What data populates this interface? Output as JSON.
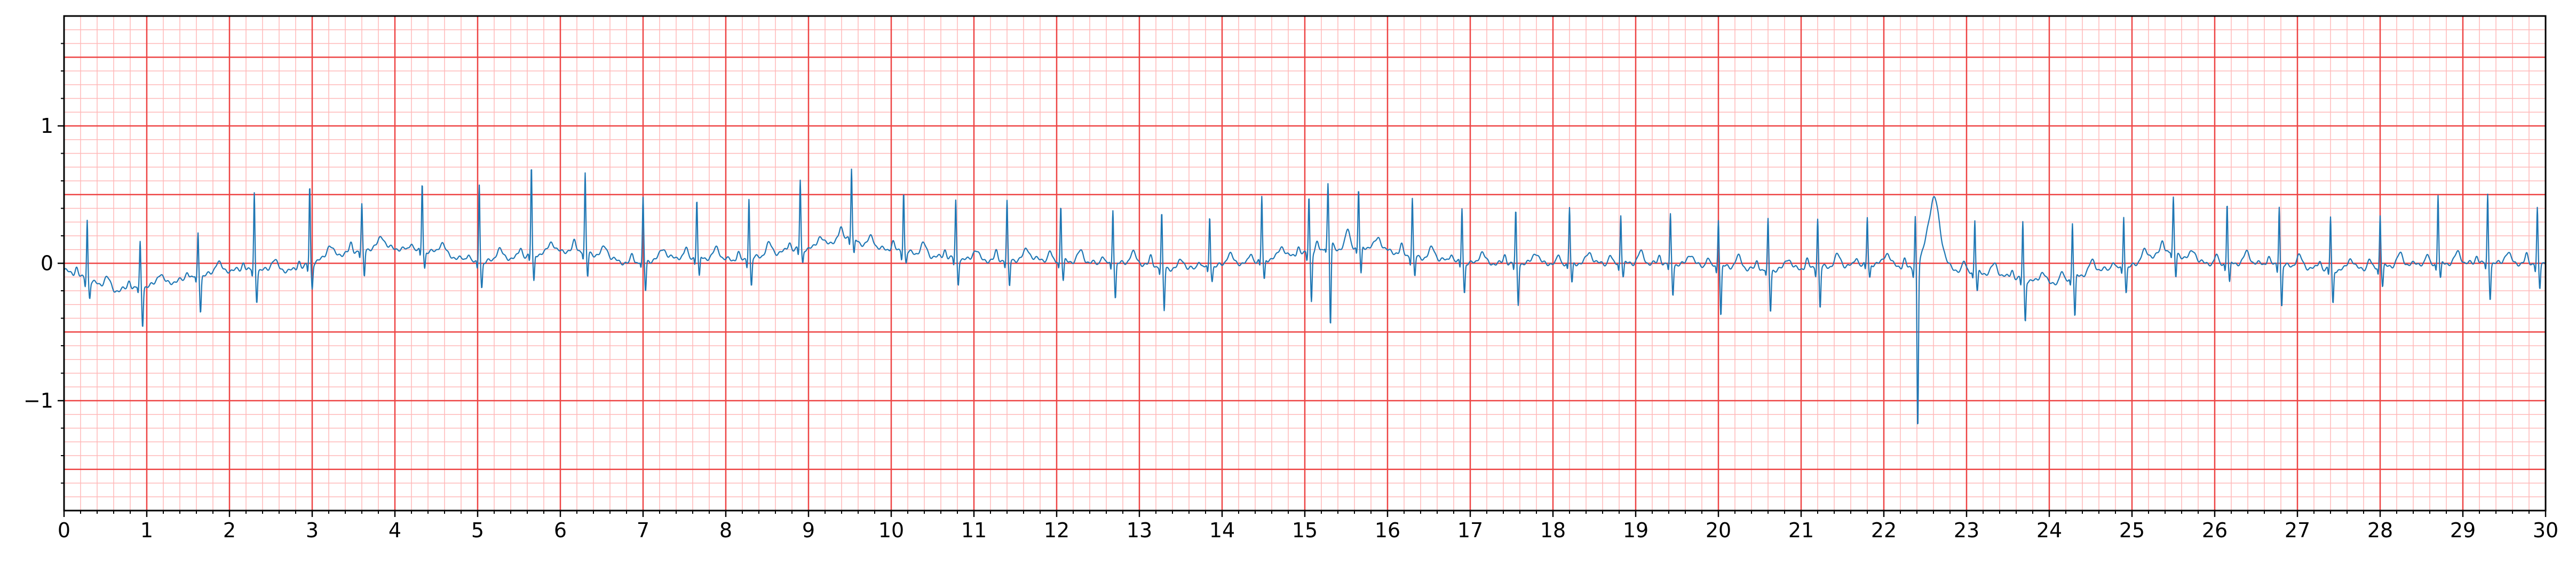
{
  "chart_data": {
    "type": "line",
    "title": "",
    "xlabel": "",
    "ylabel": "",
    "xlim": [
      0,
      30
    ],
    "ylim": [
      -1.8,
      1.8
    ],
    "x_ticks": [
      "0",
      "1",
      "2",
      "3",
      "4",
      "5",
      "6",
      "7",
      "8",
      "9",
      "10",
      "11",
      "12",
      "13",
      "14",
      "15",
      "16",
      "17",
      "18",
      "19",
      "20",
      "21",
      "22",
      "23",
      "24",
      "25",
      "26",
      "27",
      "28",
      "29",
      "30"
    ],
    "y_ticks": [
      {
        "value": -1,
        "label": "−1"
      },
      {
        "value": 0,
        "label": "0"
      },
      {
        "value": 1,
        "label": "1"
      }
    ],
    "grid": {
      "major": true,
      "major_x_step": 1,
      "major_y_step": 0.5,
      "minor": true,
      "minor_x_step": 0.2,
      "minor_y_step": 0.1,
      "major_color": "#ee4444",
      "minor_color": "#ffb8b8"
    },
    "series_color": "#1f77b4",
    "series": [
      {
        "baseline": [
          [
            0,
            -0.05
          ],
          [
            0.6,
            -0.2
          ],
          [
            1.2,
            -0.15
          ],
          [
            2,
            -0.05
          ],
          [
            2.8,
            -0.05
          ],
          [
            3.2,
            0.05
          ],
          [
            3.8,
            0.12
          ],
          [
            4.5,
            0.08
          ],
          [
            5,
            0.0
          ],
          [
            5.5,
            0.05
          ],
          [
            6.2,
            0.1
          ],
          [
            6.8,
            0.0
          ],
          [
            7.5,
            0.05
          ],
          [
            8.2,
            0.02
          ],
          [
            8.8,
            0.1
          ],
          [
            9.4,
            0.12
          ],
          [
            10,
            0.1
          ],
          [
            10.5,
            0.05
          ],
          [
            11,
            0.02
          ],
          [
            11.8,
            0.03
          ],
          [
            12.5,
            0.0
          ],
          [
            13,
            0.0
          ],
          [
            13.5,
            -0.05
          ],
          [
            14.2,
            0.0
          ],
          [
            14.8,
            0.05
          ],
          [
            15.3,
            0.1
          ],
          [
            15.8,
            0.12
          ],
          [
            16.3,
            0.05
          ],
          [
            17,
            0.0
          ],
          [
            17.6,
            0.0
          ],
          [
            18.4,
            0.0
          ],
          [
            19.2,
            0.0
          ],
          [
            20,
            -0.02
          ],
          [
            20.6,
            -0.05
          ],
          [
            21.2,
            -0.03
          ],
          [
            22,
            0.0
          ],
          [
            22.4,
            -0.05
          ],
          [
            23,
            -0.05
          ],
          [
            23.5,
            -0.1
          ],
          [
            24,
            -0.15
          ],
          [
            24.6,
            -0.05
          ],
          [
            25.5,
            0.0
          ],
          [
            26.5,
            0.0
          ],
          [
            27.5,
            -0.05
          ],
          [
            28.5,
            0.0
          ],
          [
            29.2,
            0.0
          ],
          [
            30,
            0.0
          ]
        ],
        "beats": [
          [
            0.28,
            0.44,
            -0.12
          ],
          [
            0.92,
            0.32,
            -0.28
          ],
          [
            1.62,
            0.32,
            -0.25
          ],
          [
            2.3,
            0.56,
            -0.22
          ],
          [
            2.97,
            0.57,
            -0.18
          ],
          [
            3.6,
            0.32,
            -0.2
          ],
          [
            4.33,
            0.5,
            -0.12
          ],
          [
            5.02,
            0.58,
            -0.18
          ],
          [
            5.65,
            0.64,
            -0.2
          ],
          [
            6.3,
            0.56,
            -0.18
          ],
          [
            7.0,
            0.45,
            -0.22
          ],
          [
            7.65,
            0.42,
            -0.15
          ],
          [
            8.28,
            0.45,
            -0.2
          ],
          [
            8.9,
            0.5,
            -0.1
          ],
          [
            9.52,
            0.5,
            -0.12
          ],
          [
            10.15,
            0.44,
            -0.08
          ],
          [
            10.78,
            0.42,
            -0.18
          ],
          [
            11.4,
            0.42,
            -0.2
          ],
          [
            12.05,
            0.4,
            -0.15
          ],
          [
            12.68,
            0.4,
            -0.25
          ],
          [
            13.27,
            0.38,
            -0.32
          ],
          [
            13.85,
            0.37,
            -0.1
          ],
          [
            14.48,
            0.46,
            -0.15
          ],
          [
            15.05,
            0.42,
            -0.35
          ],
          [
            15.28,
            0.4,
            -0.62
          ],
          [
            15.65,
            0.42,
            -0.2
          ],
          [
            16.3,
            0.42,
            -0.15
          ],
          [
            16.9,
            0.4,
            -0.22
          ],
          [
            17.55,
            0.37,
            -0.3
          ],
          [
            18.2,
            0.4,
            -0.15
          ],
          [
            18.82,
            0.36,
            -0.1
          ],
          [
            19.42,
            0.35,
            -0.22
          ],
          [
            20.0,
            0.35,
            -0.36
          ],
          [
            20.6,
            0.36,
            -0.3
          ],
          [
            21.2,
            0.36,
            -0.3
          ],
          [
            21.8,
            0.34,
            -0.1
          ],
          [
            22.38,
            0.38,
            -1.18
          ],
          [
            23.1,
            0.37,
            -0.15
          ],
          [
            23.68,
            0.42,
            -0.3
          ],
          [
            24.28,
            0.4,
            -0.3
          ],
          [
            24.9,
            0.38,
            -0.18
          ],
          [
            25.5,
            0.38,
            -0.18
          ],
          [
            26.15,
            0.44,
            -0.15
          ],
          [
            26.78,
            0.44,
            -0.3
          ],
          [
            27.4,
            0.38,
            -0.25
          ],
          [
            28.0,
            0.38,
            -0.15
          ],
          [
            28.7,
            0.5,
            -0.12
          ],
          [
            29.3,
            0.5,
            -0.25
          ],
          [
            29.9,
            0.4,
            -0.2
          ]
        ],
        "waves": [
          [
            22.6,
            0.45,
            0.12
          ],
          [
            25.4,
            0.1,
            0.25
          ],
          [
            9.45,
            0.08,
            0.2
          ]
        ]
      }
    ]
  }
}
